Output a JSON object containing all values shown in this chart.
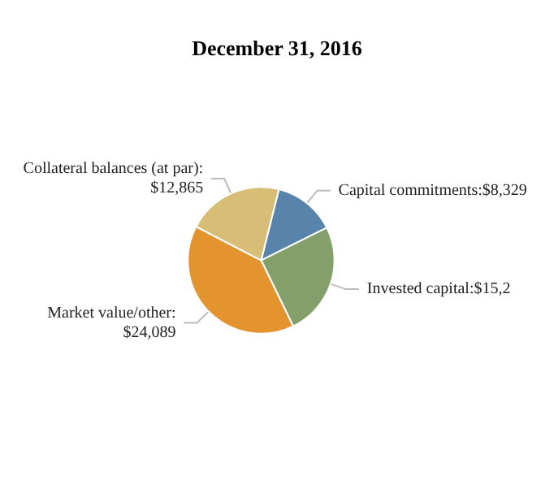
{
  "chart_data": {
    "type": "pie",
    "title": "December 31, 2016",
    "categories": [
      "Capital commitments:$8,329",
      "Invested capital:$15,2",
      "Market value/other: $24,089",
      "Collateral balances (at par): $12,865"
    ],
    "values": [
      8329,
      15200,
      24089,
      12865
    ],
    "colors": [
      "#5883ab",
      "#83a06b",
      "#e3942f",
      "#d8bd76"
    ],
    "legend": false
  }
}
